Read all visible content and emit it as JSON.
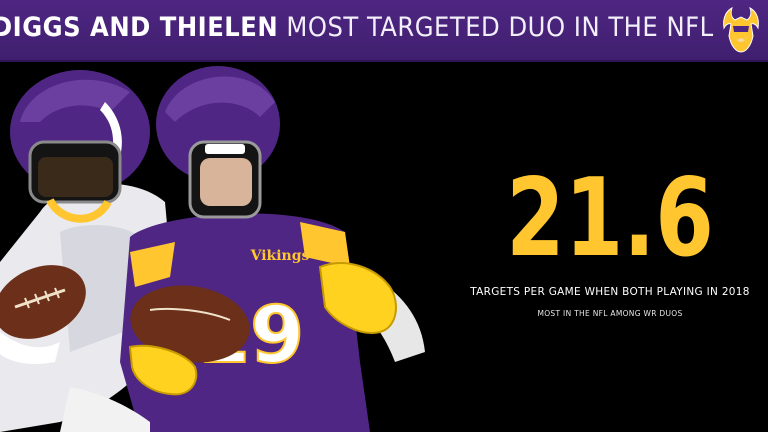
{
  "header": {
    "title_bold": "DIGGS AND THIELEN",
    "title_rest": "MOST TARGETED DUO IN THE NFL",
    "logo_icon": "vikings-logo-icon"
  },
  "stat": {
    "value": "21.6",
    "label": "TARGETS PER GAME WHEN BOTH PLAYING IN 2018",
    "sub_label": "MOST IN THE NFL AMONG WR DUOS"
  },
  "players": {
    "right_jersey_number": "19",
    "jersey_wordmark": "Vikings"
  },
  "colors": {
    "vikings_purple": "#4f2683",
    "vikings_gold": "#ffc62f",
    "background": "#000000"
  }
}
